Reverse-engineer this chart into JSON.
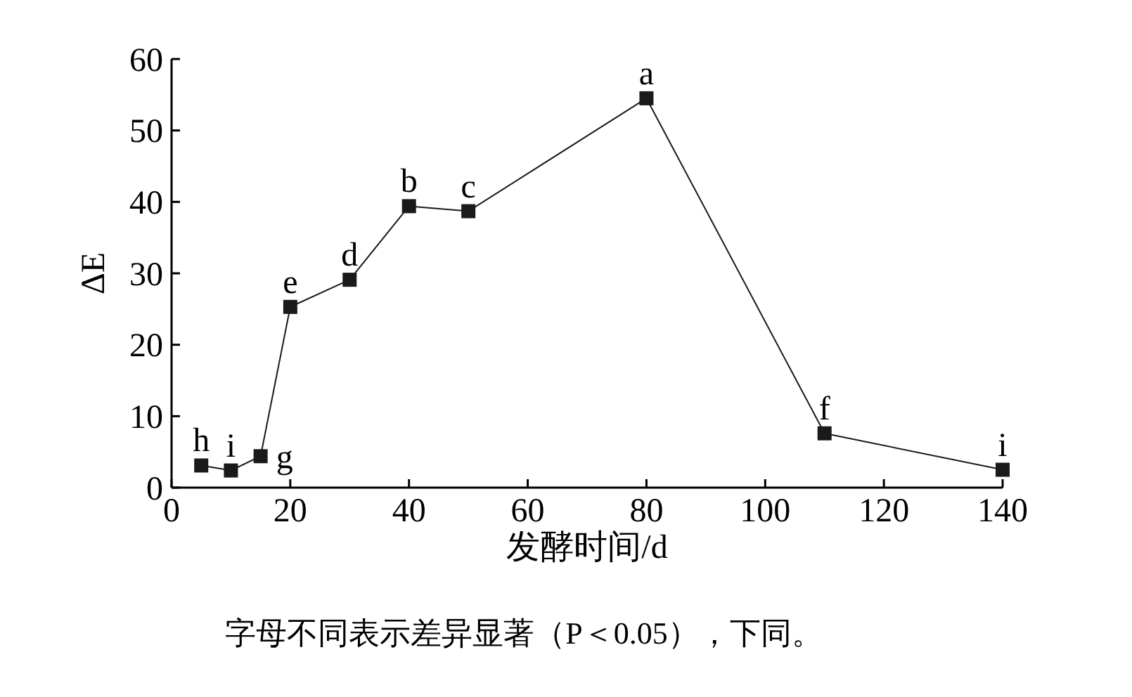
{
  "chart_data": {
    "type": "line",
    "xlabel": "发酵时间/d",
    "ylabel": "ΔE",
    "x": [
      5,
      10,
      15,
      20,
      30,
      40,
      50,
      80,
      110,
      140
    ],
    "series": [
      {
        "color": "#1a1a1a",
        "values": [
          3.1,
          2.4,
          4.4,
          25.3,
          29.1,
          39.4,
          38.7,
          54.5,
          7.6,
          2.5
        ]
      }
    ],
    "xlim": [
      0,
      140
    ],
    "xticks": [
      0,
      20,
      40,
      60,
      80,
      100,
      120,
      140
    ],
    "ylim": [
      0,
      60
    ],
    "yticks": [
      0,
      10,
      20,
      30,
      40,
      50,
      60
    ],
    "marker": "square",
    "line_style": "solid",
    "annotations": [
      {
        "text": "h",
        "x": 5,
        "y": 3.1
      },
      {
        "text": "i",
        "x": 10,
        "y": 2.4
      },
      {
        "text": "g",
        "x": 15,
        "y": 4.4
      },
      {
        "text": "e",
        "x": 20,
        "y": 25.3
      },
      {
        "text": "d",
        "x": 30,
        "y": 29.1
      },
      {
        "text": "b",
        "x": 40,
        "y": 39.4
      },
      {
        "text": "c",
        "x": 50,
        "y": 38.7
      },
      {
        "text": "a",
        "x": 80,
        "y": 54.5
      },
      {
        "text": "f",
        "x": 110,
        "y": 7.6
      },
      {
        "text": "i",
        "x": 140,
        "y": 2.5
      },
      "字母不同表示差异显著（P＜0.05），下同。"
    ]
  }
}
